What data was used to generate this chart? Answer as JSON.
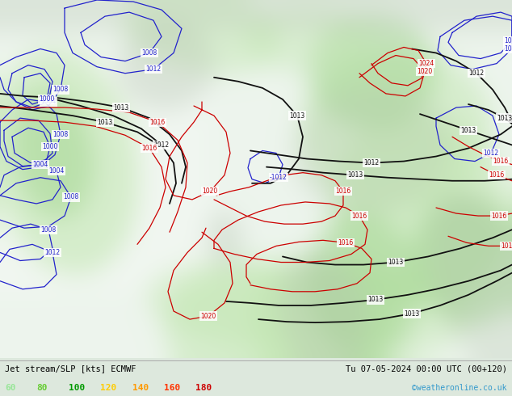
{
  "title_left": "Jet stream/SLP [kts] ECMWF",
  "title_right": "Tu 07-05-2024 00:00 UTC (00+120)",
  "credit": "©weatheronline.co.uk",
  "legend_values": [
    "60",
    "80",
    "100",
    "120",
    "140",
    "160",
    "180"
  ],
  "legend_colors": [
    "#99e699",
    "#66cc33",
    "#009900",
    "#ffcc00",
    "#ff9900",
    "#ff3300",
    "#cc0000"
  ],
  "bg_color": "#e8ece8",
  "bottom_bg": "#dde8dd",
  "label_color": "#000000",
  "credit_color": "#3399cc",
  "figsize": [
    6.34,
    4.9
  ],
  "dpi": 100,
  "ocean_color": "#d8e8d8",
  "land_color": "#b8d0b0",
  "jet_green_light": "#c0e0b0",
  "jet_green_mid": "#a0cc90",
  "jet_green_dark": "#70b060",
  "gray_land": "#c0c8c0",
  "white_area": "#f0f4f0"
}
